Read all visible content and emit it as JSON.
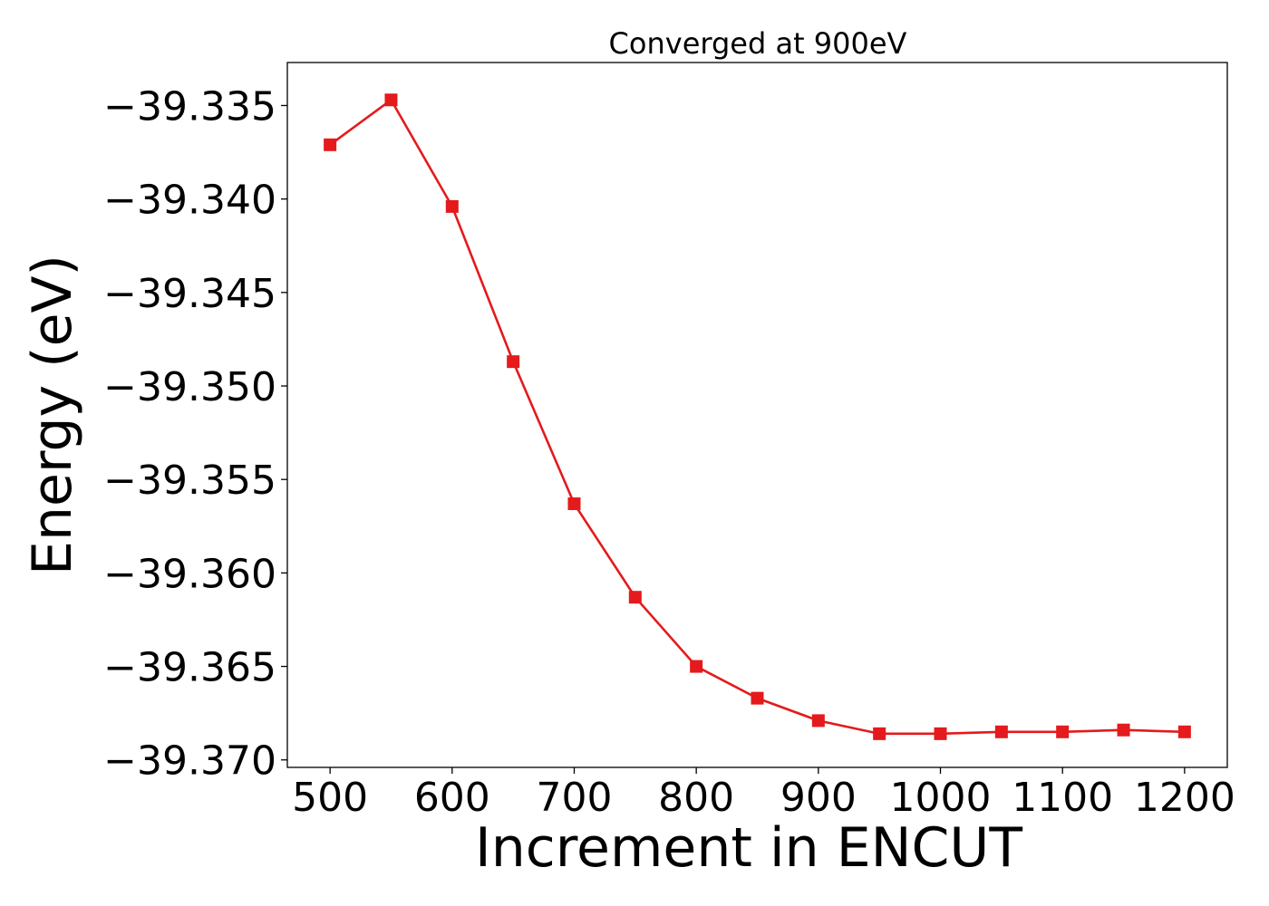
{
  "chart_data": {
    "type": "line",
    "title": "Converged at 900eV",
    "xlabel": "Increment in ENCUT",
    "ylabel": "Energy (eV)",
    "xlim": [
      465,
      1235
    ],
    "ylim": [
      -39.3704,
      -39.3327
    ],
    "xticks": [
      500,
      600,
      700,
      800,
      900,
      1000,
      1100,
      1200
    ],
    "xtick_labels": [
      "500",
      "600",
      "700",
      "800",
      "900",
      "1000",
      "1100",
      "1200"
    ],
    "yticks": [
      -39.335,
      -39.34,
      -39.345,
      -39.35,
      -39.355,
      -39.36,
      -39.365,
      -39.37
    ],
    "ytick_labels": [
      "−39.335",
      "−39.340",
      "−39.345",
      "−39.350",
      "−39.355",
      "−39.360",
      "−39.365",
      "−39.370"
    ],
    "grid": false,
    "series": [
      {
        "color": "#e41a1c",
        "marker": "square",
        "x": [
          500,
          550,
          600,
          650,
          700,
          750,
          800,
          850,
          900,
          950,
          1000,
          1050,
          1100,
          1150,
          1200
        ],
        "y": [
          -39.3371,
          -39.3347,
          -39.3404,
          -39.3487,
          -39.3563,
          -39.3613,
          -39.365,
          -39.3667,
          -39.3679,
          -39.3686,
          -39.3686,
          -39.3685,
          -39.3685,
          -39.3684,
          -39.3685
        ]
      }
    ]
  }
}
